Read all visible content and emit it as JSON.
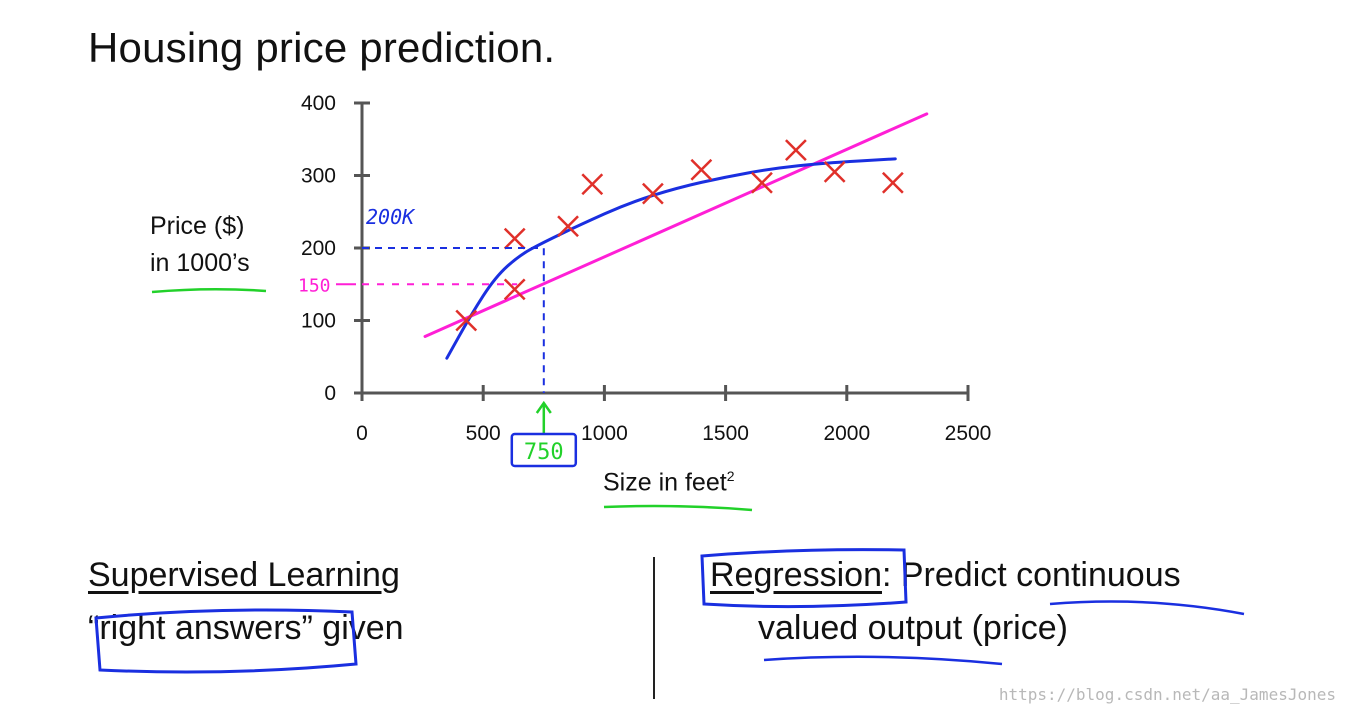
{
  "title": "Housing price prediction.",
  "chart_data": {
    "type": "scatter",
    "ylabel_line1": "Price ($)",
    "ylabel_line2": "in 1000’s",
    "xlabel": "Size in feet",
    "xlabel_sup": "2",
    "xlim": [
      0,
      2500
    ],
    "ylim": [
      0,
      400
    ],
    "x_ticks": [
      0,
      500,
      1000,
      1500,
      2000,
      2500
    ],
    "y_ticks": [
      0,
      100,
      200,
      300,
      400
    ],
    "grid": false,
    "points": [
      {
        "x": 430,
        "y": 100
      },
      {
        "x": 630,
        "y": 143
      },
      {
        "x": 630,
        "y": 213
      },
      {
        "x": 850,
        "y": 230
      },
      {
        "x": 950,
        "y": 288
      },
      {
        "x": 1200,
        "y": 275
      },
      {
        "x": 1400,
        "y": 308
      },
      {
        "x": 1650,
        "y": 290
      },
      {
        "x": 1790,
        "y": 335
      },
      {
        "x": 1950,
        "y": 305
      },
      {
        "x": 2190,
        "y": 290
      }
    ],
    "fits": [
      {
        "type": "linear",
        "color": "#ff1fd6",
        "x": [
          260,
          2330
        ],
        "y": [
          78,
          385
        ]
      },
      {
        "type": "curve",
        "color": "#1a2fe0",
        "x": [
          350,
          450,
          550,
          650,
          750,
          900,
          1100,
          1300,
          1500,
          1700,
          1900,
          2200
        ],
        "y": [
          48,
          108,
          160,
          190,
          208,
          232,
          262,
          283,
          298,
          310,
          317,
          323
        ]
      }
    ],
    "annotations": {
      "query_x_label": "750",
      "query_x": 750,
      "blue_price_label": "200K",
      "blue_price": 200,
      "pink_price_label": "150",
      "pink_price": 150,
      "point_color": "#e0302a",
      "highlight_color": "#22d12a"
    }
  },
  "left": {
    "heading": "Supervised Learning",
    "line": "“right answers” given"
  },
  "right": {
    "keyword": "Regression",
    "rest_line1": ": Predict continuous",
    "line2": "valued output (price)"
  },
  "watermark": "https://blog.csdn.net/aa_JamesJones"
}
